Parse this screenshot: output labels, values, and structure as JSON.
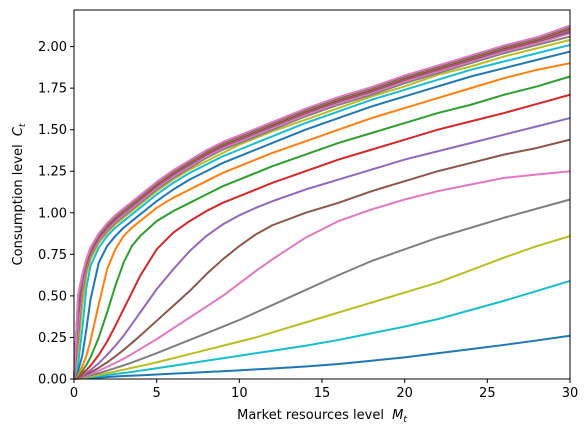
{
  "chart_data": {
    "type": "line",
    "xlabel": "Market resources level",
    "xlabel_var": "M",
    "xlabel_sub": "t",
    "ylabel": "Consumption level",
    "ylabel_var": "C",
    "ylabel_sub": "t",
    "xlim": [
      0,
      30
    ],
    "ylim": [
      0,
      2.22
    ],
    "xticks": [
      0,
      5,
      10,
      15,
      20,
      25,
      30
    ],
    "yticks": [
      0.0,
      0.25,
      0.5,
      0.75,
      1.0,
      1.25,
      1.5,
      1.75,
      2.0
    ],
    "grid": false,
    "legend": "none",
    "x": [
      0,
      0.25,
      0.5,
      0.75,
      1,
      1.5,
      2,
      2.5,
      3,
      3.5,
      4,
      5,
      6,
      7,
      8,
      9,
      10,
      11,
      12,
      14,
      16,
      18,
      20,
      22,
      24,
      26,
      28,
      30
    ],
    "series": [
      {
        "color": "#1f77b4",
        "values": [
          0,
          0.002,
          0.003,
          0.005,
          0.006,
          0.009,
          0.012,
          0.015,
          0.018,
          0.02,
          0.022,
          0.027,
          0.032,
          0.037,
          0.042,
          0.047,
          0.052,
          0.058,
          0.063,
          0.075,
          0.09,
          0.11,
          0.13,
          0.155,
          0.18,
          0.205,
          0.232,
          0.26
        ]
      },
      {
        "color": "#17becf",
        "values": [
          0,
          0.003,
          0.006,
          0.009,
          0.012,
          0.018,
          0.024,
          0.03,
          0.036,
          0.042,
          0.05,
          0.065,
          0.08,
          0.095,
          0.11,
          0.125,
          0.14,
          0.155,
          0.17,
          0.2,
          0.235,
          0.275,
          0.315,
          0.36,
          0.415,
          0.47,
          0.53,
          0.59
        ]
      },
      {
        "color": "#bcbd22",
        "values": [
          0,
          0.004,
          0.008,
          0.012,
          0.016,
          0.025,
          0.035,
          0.045,
          0.056,
          0.067,
          0.078,
          0.1,
          0.125,
          0.15,
          0.175,
          0.2,
          0.225,
          0.25,
          0.28,
          0.34,
          0.4,
          0.46,
          0.52,
          0.58,
          0.655,
          0.73,
          0.8,
          0.86
        ]
      },
      {
        "color": "#7f7f7f",
        "values": [
          0,
          0.005,
          0.01,
          0.016,
          0.022,
          0.035,
          0.05,
          0.066,
          0.082,
          0.1,
          0.118,
          0.155,
          0.195,
          0.235,
          0.275,
          0.315,
          0.355,
          0.4,
          0.445,
          0.535,
          0.625,
          0.71,
          0.78,
          0.85,
          0.91,
          0.97,
          1.025,
          1.08
        ]
      },
      {
        "color": "#e377c2",
        "values": [
          0,
          0.006,
          0.013,
          0.021,
          0.03,
          0.05,
          0.073,
          0.097,
          0.122,
          0.15,
          0.18,
          0.24,
          0.305,
          0.37,
          0.435,
          0.5,
          0.575,
          0.65,
          0.72,
          0.85,
          0.95,
          1.02,
          1.08,
          1.13,
          1.17,
          1.21,
          1.23,
          1.25
        ]
      },
      {
        "color": "#8c564b",
        "values": [
          0,
          0.008,
          0.017,
          0.028,
          0.04,
          0.068,
          0.1,
          0.136,
          0.175,
          0.217,
          0.26,
          0.35,
          0.44,
          0.53,
          0.63,
          0.72,
          0.8,
          0.87,
          0.925,
          1.0,
          1.06,
          1.13,
          1.19,
          1.25,
          1.3,
          1.35,
          1.39,
          1.44
        ]
      },
      {
        "color": "#9467bd",
        "values": [
          0,
          0.01,
          0.022,
          0.037,
          0.054,
          0.095,
          0.145,
          0.2,
          0.26,
          0.33,
          0.4,
          0.54,
          0.66,
          0.77,
          0.86,
          0.93,
          0.985,
          1.03,
          1.07,
          1.14,
          1.2,
          1.26,
          1.32,
          1.37,
          1.42,
          1.47,
          1.52,
          1.57
        ]
      },
      {
        "color": "#d62728",
        "values": [
          0,
          0.014,
          0.032,
          0.054,
          0.08,
          0.145,
          0.225,
          0.32,
          0.42,
          0.52,
          0.62,
          0.78,
          0.88,
          0.95,
          1.01,
          1.06,
          1.1,
          1.14,
          1.18,
          1.25,
          1.32,
          1.38,
          1.44,
          1.5,
          1.55,
          1.6,
          1.655,
          1.71
        ]
      },
      {
        "color": "#2ca02c",
        "values": [
          0,
          0.02,
          0.048,
          0.085,
          0.13,
          0.25,
          0.4,
          0.56,
          0.7,
          0.8,
          0.86,
          0.95,
          1.01,
          1.06,
          1.11,
          1.16,
          1.2,
          1.24,
          1.28,
          1.35,
          1.42,
          1.48,
          1.54,
          1.6,
          1.65,
          1.71,
          1.76,
          1.82
        ]
      },
      {
        "color": "#ff7f0e",
        "values": [
          0,
          0.03,
          0.075,
          0.14,
          0.23,
          0.45,
          0.66,
          0.78,
          0.86,
          0.91,
          0.95,
          1.03,
          1.09,
          1.14,
          1.19,
          1.24,
          1.28,
          1.32,
          1.36,
          1.43,
          1.5,
          1.57,
          1.63,
          1.69,
          1.75,
          1.81,
          1.86,
          1.9
        ]
      },
      {
        "color": "#1f77b4",
        "values": [
          0,
          0.05,
          0.14,
          0.3,
          0.48,
          0.7,
          0.8,
          0.86,
          0.91,
          0.95,
          0.99,
          1.07,
          1.14,
          1.2,
          1.25,
          1.3,
          1.34,
          1.38,
          1.42,
          1.5,
          1.57,
          1.64,
          1.7,
          1.76,
          1.82,
          1.87,
          1.92,
          1.97
        ]
      },
      {
        "color": "#17becf",
        "values": [
          0,
          0.09,
          0.3,
          0.55,
          0.68,
          0.79,
          0.86,
          0.91,
          0.95,
          0.99,
          1.03,
          1.11,
          1.18,
          1.24,
          1.29,
          1.34,
          1.38,
          1.42,
          1.46,
          1.54,
          1.61,
          1.68,
          1.74,
          1.8,
          1.86,
          1.91,
          1.96,
          2.01
        ]
      },
      {
        "color": "#bcbd22",
        "values": [
          0,
          0.18,
          0.45,
          0.63,
          0.72,
          0.82,
          0.88,
          0.93,
          0.97,
          1.01,
          1.05,
          1.13,
          1.2,
          1.26,
          1.31,
          1.36,
          1.41,
          1.45,
          1.49,
          1.56,
          1.63,
          1.7,
          1.76,
          1.83,
          1.88,
          1.94,
          1.99,
          2.04
        ]
      },
      {
        "color": "#7f7f7f",
        "values": [
          0,
          0.25,
          0.52,
          0.66,
          0.74,
          0.83,
          0.89,
          0.94,
          0.98,
          1.02,
          1.06,
          1.14,
          1.21,
          1.27,
          1.33,
          1.38,
          1.42,
          1.46,
          1.5,
          1.58,
          1.65,
          1.71,
          1.78,
          1.84,
          1.9,
          1.96,
          2.01,
          2.06
        ]
      },
      {
        "color": "#e377c2",
        "values": [
          0,
          0.32,
          0.56,
          0.68,
          0.75,
          0.84,
          0.9,
          0.95,
          0.99,
          1.03,
          1.07,
          1.15,
          1.22,
          1.28,
          1.34,
          1.39,
          1.43,
          1.47,
          1.51,
          1.59,
          1.66,
          1.72,
          1.79,
          1.85,
          1.91,
          1.97,
          2.02,
          2.08
        ]
      },
      {
        "color": "#8c564b",
        "values": [
          0,
          0.38,
          0.59,
          0.69,
          0.76,
          0.85,
          0.91,
          0.96,
          1.0,
          1.04,
          1.08,
          1.16,
          1.23,
          1.29,
          1.35,
          1.4,
          1.44,
          1.48,
          1.52,
          1.6,
          1.67,
          1.73,
          1.8,
          1.86,
          1.92,
          1.98,
          2.03,
          2.09
        ]
      },
      {
        "color": "#9467bd",
        "values": [
          0,
          0.42,
          0.6,
          0.7,
          0.77,
          0.855,
          0.915,
          0.965,
          1.005,
          1.045,
          1.085,
          1.165,
          1.235,
          1.295,
          1.355,
          1.405,
          1.445,
          1.485,
          1.525,
          1.605,
          1.675,
          1.735,
          1.805,
          1.865,
          1.925,
          1.985,
          2.035,
          2.1
        ]
      },
      {
        "color": "#d62728",
        "values": [
          0,
          0.45,
          0.61,
          0.705,
          0.775,
          0.86,
          0.92,
          0.97,
          1.01,
          1.05,
          1.09,
          1.17,
          1.24,
          1.3,
          1.36,
          1.41,
          1.45,
          1.49,
          1.53,
          1.61,
          1.68,
          1.74,
          1.81,
          1.87,
          1.93,
          1.99,
          2.04,
          2.11
        ]
      },
      {
        "color": "#2ca02c",
        "values": [
          0,
          0.47,
          0.615,
          0.71,
          0.78,
          0.865,
          0.925,
          0.975,
          1.015,
          1.055,
          1.095,
          1.175,
          1.245,
          1.305,
          1.365,
          1.415,
          1.455,
          1.495,
          1.535,
          1.615,
          1.685,
          1.745,
          1.815,
          1.875,
          1.935,
          1.995,
          2.045,
          2.115
        ]
      },
      {
        "color": "#ff7f0e",
        "values": [
          0,
          0.48,
          0.62,
          0.713,
          0.783,
          0.868,
          0.928,
          0.978,
          1.018,
          1.058,
          1.098,
          1.178,
          1.248,
          1.308,
          1.368,
          1.418,
          1.458,
          1.498,
          1.538,
          1.618,
          1.688,
          1.748,
          1.818,
          1.878,
          1.938,
          1.998,
          2.048,
          2.118
        ]
      },
      {
        "color": "#1f77b4",
        "values": [
          0,
          0.49,
          0.623,
          0.716,
          0.786,
          0.871,
          0.931,
          0.981,
          1.021,
          1.061,
          1.101,
          1.181,
          1.251,
          1.311,
          1.371,
          1.421,
          1.461,
          1.501,
          1.541,
          1.621,
          1.691,
          1.751,
          1.821,
          1.881,
          1.941,
          2.001,
          2.051,
          2.121
        ]
      },
      {
        "color": "#8c564b",
        "values": [
          0,
          0.5,
          0.626,
          0.719,
          0.789,
          0.874,
          0.934,
          0.984,
          1.024,
          1.064,
          1.104,
          1.184,
          1.254,
          1.314,
          1.374,
          1.424,
          1.464,
          1.504,
          1.544,
          1.624,
          1.694,
          1.754,
          1.824,
          1.884,
          1.944,
          2.004,
          2.054,
          2.124
        ]
      },
      {
        "color": "#e377c2",
        "values": [
          0,
          0.505,
          0.628,
          0.721,
          0.791,
          0.876,
          0.936,
          0.986,
          1.026,
          1.066,
          1.106,
          1.186,
          1.256,
          1.316,
          1.376,
          1.426,
          1.466,
          1.506,
          1.546,
          1.626,
          1.696,
          1.756,
          1.826,
          1.886,
          1.946,
          2.006,
          2.056,
          2.126
        ]
      }
    ]
  }
}
